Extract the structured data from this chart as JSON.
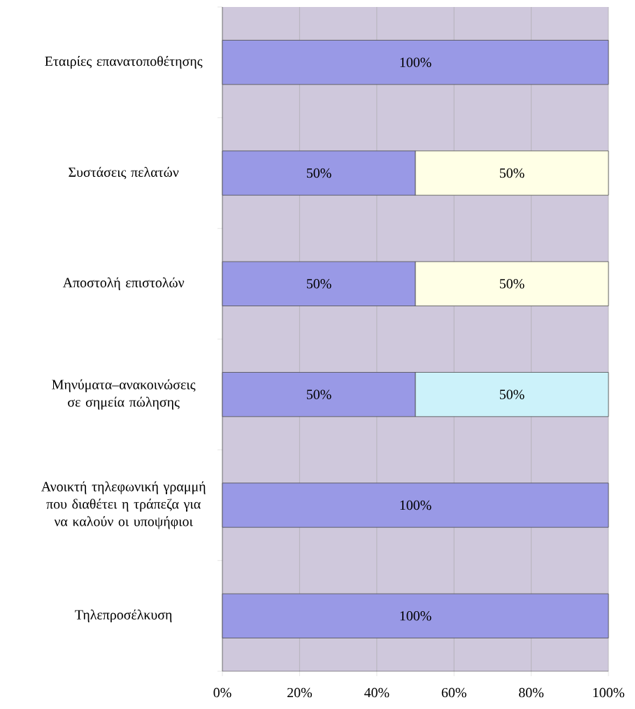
{
  "chart_data": {
    "type": "bar",
    "orientation": "horizontal",
    "stacked": true,
    "categories": [
      "Εταιρίες επανατοποθέτησης",
      "Συστάσεις πελατών",
      "Αποστολή επιστολών",
      "Μηνύματα–ανακοινώσεις σε σημεία πώλησης",
      "Ανοικτή τηλεφωνική γραμμή που διαθέτει η τράπεζα για να καλούν οι υποψήφιοι",
      "Τηλεπροσέλκυση"
    ],
    "series": [
      {
        "color": "#9999e6",
        "values": [
          100,
          50,
          50,
          50,
          100,
          100
        ],
        "value_labels": [
          "100%",
          "50%",
          "50%",
          "50%",
          "100%",
          "100%"
        ]
      },
      {
        "color": "#ffffe6",
        "values": [
          null,
          50,
          50,
          null,
          null,
          null
        ],
        "value_labels": [
          null,
          "50%",
          "50%",
          null,
          null,
          null
        ]
      },
      {
        "color": "#ccf2fa",
        "values": [
          null,
          null,
          null,
          50,
          null,
          null
        ],
        "value_labels": [
          null,
          null,
          null,
          "50%",
          null,
          null
        ]
      }
    ],
    "xlim": [
      0,
      100
    ],
    "xticks": [
      {
        "value": 0,
        "label": "0%"
      },
      {
        "value": 20,
        "label": "20%"
      },
      {
        "value": 40,
        "label": "40%"
      },
      {
        "value": 60,
        "label": "60%"
      },
      {
        "value": 80,
        "label": "80%"
      },
      {
        "value": 100,
        "label": "100%"
      }
    ],
    "grid": "x"
  }
}
